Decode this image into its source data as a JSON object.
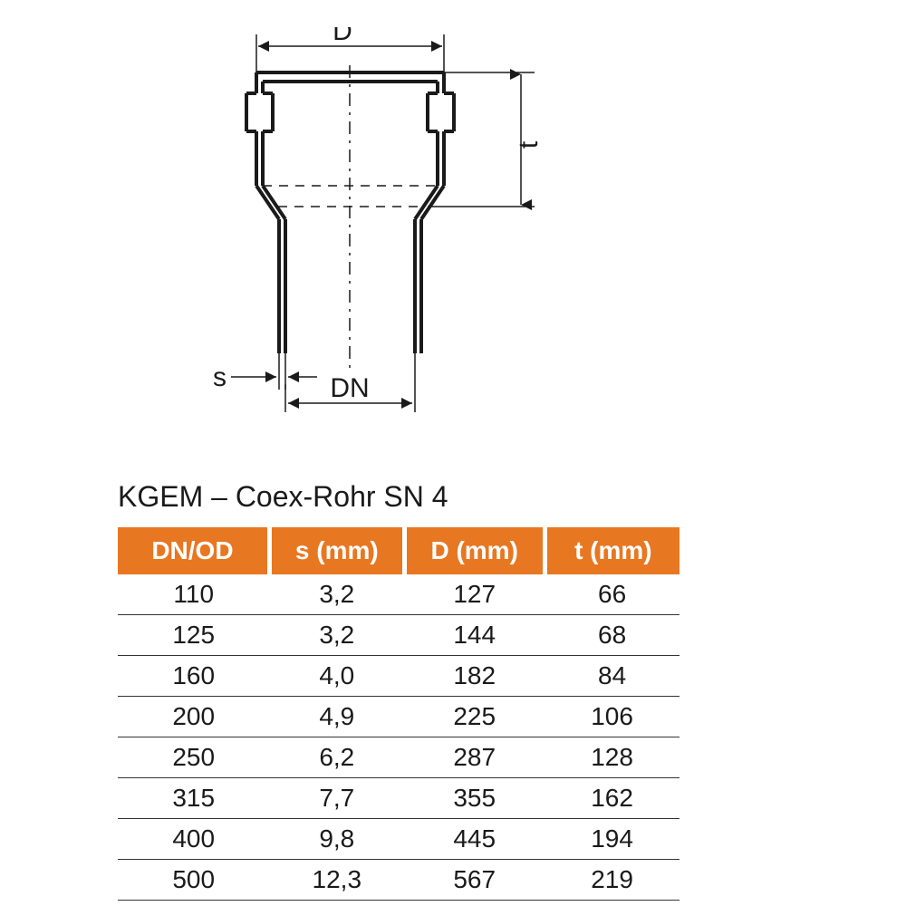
{
  "title": "KGEM – Coex-Rohr SN 4",
  "diagram": {
    "labels": {
      "D": "D",
      "t": "t",
      "s": "s",
      "DN": "DN"
    },
    "stroke": "#1a1a1a",
    "stroke_width_heavy": 4,
    "stroke_width_thin": 1.5,
    "dash": "10,8"
  },
  "table": {
    "header_bg": "#e87722",
    "header_fg": "#ffffff",
    "cell_fg": "#1a1a1a",
    "border_color": "#333333",
    "columns": [
      "DN/OD",
      "s (mm)",
      "D (mm)",
      "t (mm)"
    ],
    "rows": [
      [
        "110",
        "3,2",
        "127",
        "66"
      ],
      [
        "125",
        "3,2",
        "144",
        "68"
      ],
      [
        "160",
        "4,0",
        "182",
        "84"
      ],
      [
        "200",
        "4,9",
        "225",
        "106"
      ],
      [
        "250",
        "6,2",
        "287",
        "128"
      ],
      [
        "315",
        "7,7",
        "355",
        "162"
      ],
      [
        "400",
        "9,8",
        "445",
        "194"
      ],
      [
        "500",
        "12,3",
        "567",
        "219"
      ]
    ]
  }
}
